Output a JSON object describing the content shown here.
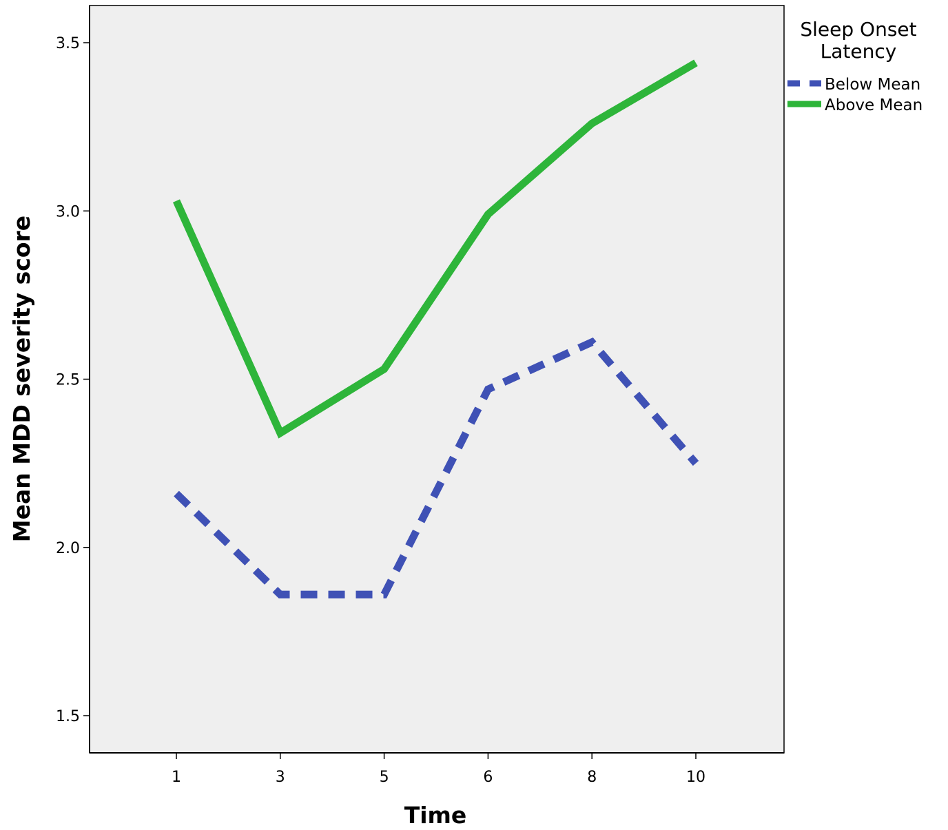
{
  "chart_data": {
    "type": "line",
    "title": "",
    "xlabel": "Time",
    "ylabel": "Mean MDD severity score",
    "categories": [
      "1",
      "3",
      "5",
      "6",
      "8",
      "10"
    ],
    "ylim": [
      1.4,
      3.6
    ],
    "yticks": [
      1.5,
      2.0,
      2.5,
      3.0,
      3.5
    ],
    "ytick_labels": [
      "1.5",
      "2.0",
      "2.5",
      "3.0",
      "3.5"
    ],
    "grid": false,
    "legend": {
      "title_lines": [
        "Sleep Onset",
        "Latency"
      ],
      "placement": "right"
    },
    "series": [
      {
        "name": "Below Mean",
        "values": [
          2.16,
          1.86,
          1.86,
          2.47,
          2.61,
          2.25
        ],
        "color": "#3f51b5",
        "style": "dashed"
      },
      {
        "name": "Above Mean",
        "values": [
          3.03,
          2.34,
          2.53,
          2.99,
          3.26,
          3.44
        ],
        "color": "#2eb53a",
        "style": "solid"
      }
    ],
    "plot_background": "#efefef"
  }
}
